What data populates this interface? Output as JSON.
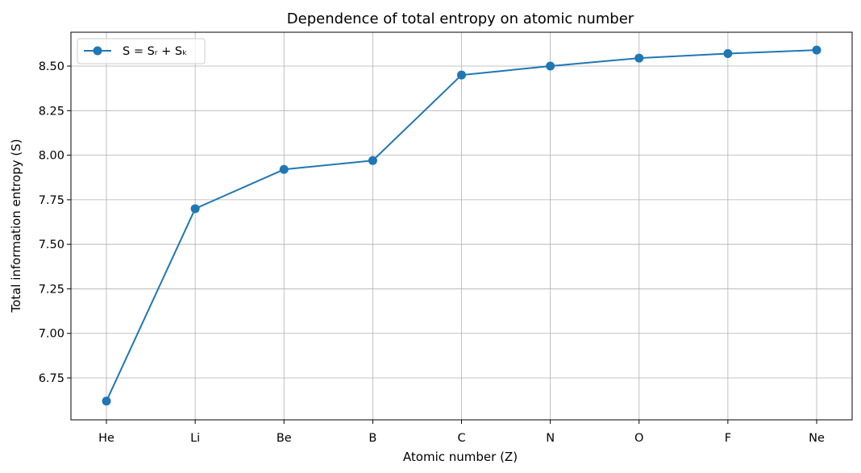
{
  "chart_data": {
    "type": "line",
    "title": "Dependence of total entropy on atomic number",
    "xlabel": "Atomic number (Z)",
    "ylabel": "Total information entropy (S)",
    "categories": [
      "He",
      "Li",
      "Be",
      "B",
      "C",
      "N",
      "O",
      "F",
      "Ne"
    ],
    "series": [
      {
        "name": "S = Sᵣ + Sₖ",
        "values": [
          6.62,
          7.7,
          7.92,
          7.97,
          8.45,
          8.5,
          8.545,
          8.57,
          8.59
        ],
        "color": "#1f77b4"
      }
    ],
    "ylim": [
      6.515,
      8.69
    ],
    "yticks": [
      6.75,
      7.0,
      7.25,
      7.5,
      7.75,
      8.0,
      8.25,
      8.5
    ],
    "ytick_labels": [
      "6.75",
      "7.00",
      "7.25",
      "7.50",
      "7.75",
      "8.00",
      "8.25",
      "8.50"
    ],
    "grid": true,
    "legend_position": "top-left"
  }
}
